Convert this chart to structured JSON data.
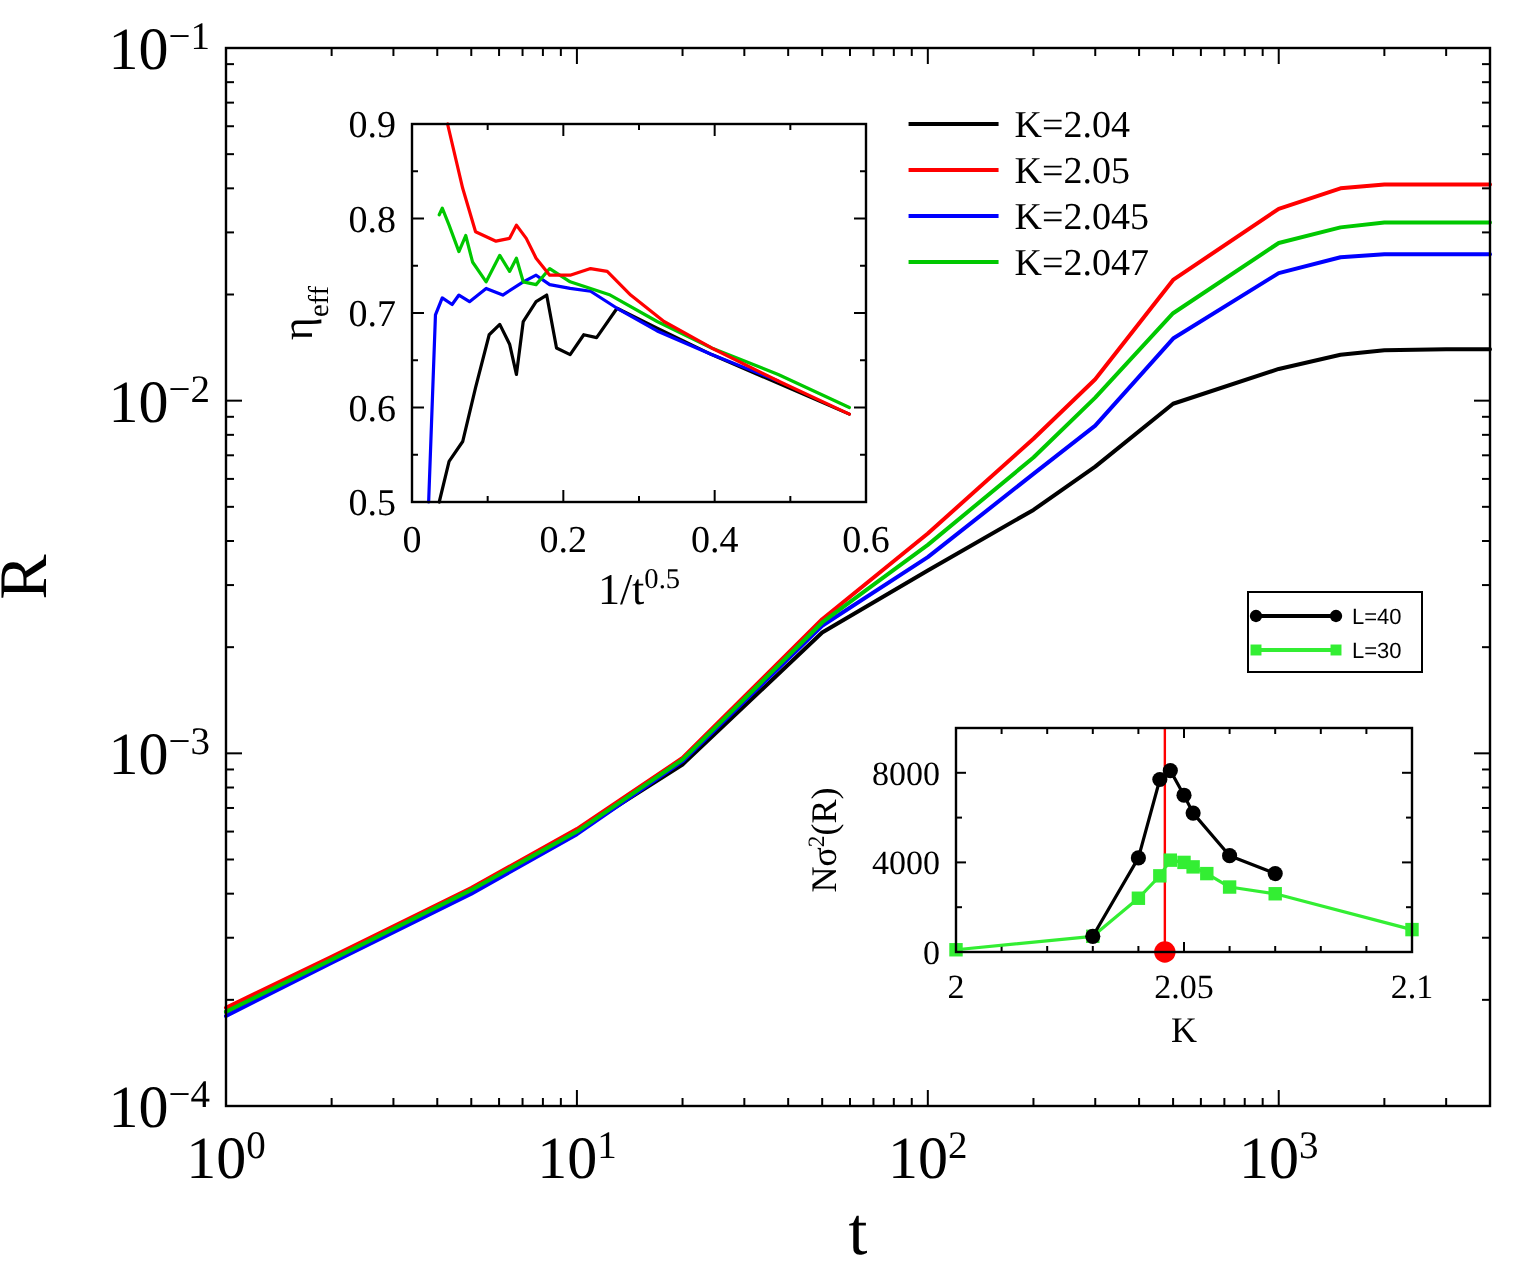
{
  "chart_data": [
    {
      "type": "line",
      "xlabel": "t",
      "ylabel": "R",
      "log": "xy",
      "legend": "top",
      "line_style": "solid",
      "marker": "none",
      "x": [
        1,
        2,
        5,
        10,
        20,
        50,
        100,
        200,
        300,
        500,
        1000,
        1500,
        2000,
        3000,
        4000
      ],
      "xlim": [
        1,
        4000
      ],
      "ylim": [
        0.0001,
        0.1
      ],
      "xticks": [
        {
          "value": 1,
          "label": "10$^{0}$"
        },
        {
          "value": 2,
          "label": null
        },
        {
          "value": 3,
          "label": null
        },
        {
          "value": 4,
          "label": null
        },
        {
          "value": 5,
          "label": null
        },
        {
          "value": 6,
          "label": null
        },
        {
          "value": 7,
          "label": null
        },
        {
          "value": 8,
          "label": null
        },
        {
          "value": 9,
          "label": null
        },
        {
          "value": 10,
          "label": "10$^{1}$"
        },
        {
          "value": 20,
          "label": null
        },
        {
          "value": 30,
          "label": null
        },
        {
          "value": 40,
          "label": null
        },
        {
          "value": 50,
          "label": null
        },
        {
          "value": 60,
          "label": null
        },
        {
          "value": 70,
          "label": null
        },
        {
          "value": 80,
          "label": null
        },
        {
          "value": 90,
          "label": null
        },
        {
          "value": 100,
          "label": "10$^{2}$"
        },
        {
          "value": 200,
          "label": null
        },
        {
          "value": 300,
          "label": null
        },
        {
          "value": 400,
          "label": null
        },
        {
          "value": 500,
          "label": null
        },
        {
          "value": 600,
          "label": null
        },
        {
          "value": 700,
          "label": null
        },
        {
          "value": 800,
          "label": null
        },
        {
          "value": 900,
          "label": null
        },
        {
          "value": 1000,
          "label": "10$^{3}$"
        },
        {
          "value": 2000,
          "label": null
        },
        {
          "value": 3000,
          "label": null
        },
        {
          "value": 4000,
          "label": null
        }
      ],
      "yticks": [
        {
          "value": 0.0001,
          "label": "10$^{−4}$"
        },
        {
          "value": 0.0002,
          "label": null
        },
        {
          "value": 0.0003,
          "label": null
        },
        {
          "value": 0.0004,
          "label": null
        },
        {
          "value": 0.0005,
          "label": null
        },
        {
          "value": 0.0006,
          "label": null
        },
        {
          "value": 0.0007,
          "label": null
        },
        {
          "value": 0.0008,
          "label": null
        },
        {
          "value": 0.0009,
          "label": null
        },
        {
          "value": 0.001,
          "label": "10$^{−3}$"
        },
        {
          "value": 0.002,
          "label": null
        },
        {
          "value": 0.003,
          "label": null
        },
        {
          "value": 0.004,
          "label": null
        },
        {
          "value": 0.005,
          "label": null
        },
        {
          "value": 0.006,
          "label": null
        },
        {
          "value": 0.007,
          "label": null
        },
        {
          "value": 0.008,
          "label": null
        },
        {
          "value": 0.009,
          "label": null
        },
        {
          "value": 0.01,
          "label": "10$^{−2}$"
        },
        {
          "value": 0.02,
          "label": null
        },
        {
          "value": 0.03,
          "label": null
        },
        {
          "value": 0.04,
          "label": null
        },
        {
          "value": 0.05,
          "label": null
        },
        {
          "value": 0.06,
          "label": null
        },
        {
          "value": 0.07,
          "label": null
        },
        {
          "value": 0.08,
          "label": null
        },
        {
          "value": 0.09,
          "label": null
        },
        {
          "value": 0.1,
          "label": "10$^{−1}$"
        }
      ],
      "series": [
        {
          "name": "K=2.04",
          "color": "#000000",
          "values": [
            0.000185,
            0.00026,
            0.00041,
            0.0006,
            0.00093,
            0.0022,
            0.0033,
            0.0049,
            0.0065,
            0.0098,
            0.0123,
            0.0135,
            0.0139,
            0.014,
            0.014
          ]
        },
        {
          "name": "K=2.05",
          "color": "#ff0000",
          "values": [
            0.00019,
            0.000265,
            0.000415,
            0.00061,
            0.00097,
            0.0024,
            0.0042,
            0.0078,
            0.0115,
            0.022,
            0.035,
            0.04,
            0.041,
            0.041,
            0.041
          ]
        },
        {
          "name": "K=2.045",
          "color": "#0000ff",
          "values": [
            0.00018,
            0.000255,
            0.0004,
            0.00059,
            0.00095,
            0.0023,
            0.0036,
            0.0062,
            0.0085,
            0.015,
            0.023,
            0.0255,
            0.026,
            0.026,
            0.026
          ]
        },
        {
          "name": "K=2.047",
          "color": "#00c800",
          "values": [
            0.000185,
            0.00026,
            0.00041,
            0.0006,
            0.00096,
            0.00235,
            0.0039,
            0.0069,
            0.0102,
            0.0177,
            0.028,
            0.031,
            0.032,
            0.032,
            0.032
          ]
        }
      ]
    },
    {
      "type": "line",
      "xlabel": "1/t$^{0.5}$",
      "ylabel": "η$_{eff}$",
      "legend": false,
      "line_style": "solid",
      "marker": "none",
      "xlim": [
        0,
        0.6
      ],
      "ylim": [
        0.5,
        0.9
      ],
      "xticks": [
        0,
        {
          "value": 0.1,
          "label": null
        },
        0.2,
        {
          "value": 0.3,
          "label": null
        },
        0.4,
        {
          "value": 0.5,
          "label": null
        },
        0.6
      ],
      "yticks": [
        0.5,
        {
          "value": 0.55,
          "label": null
        },
        0.6,
        {
          "value": 0.65,
          "label": null
        },
        0.7,
        {
          "value": 0.75,
          "label": null
        },
        0.8,
        {
          "value": 0.85,
          "label": null
        },
        0.9
      ],
      "series": [
        {
          "color": "#000000",
          "x": [
            0.036,
            0.049,
            0.067,
            0.084,
            0.102,
            0.116,
            0.129,
            0.138,
            0.147,
            0.164,
            0.178,
            0.191,
            0.209,
            0.227,
            0.244,
            0.271,
            0.324,
            0.396,
            0.484,
            0.578
          ],
          "values": [
            0.5,
            0.543,
            0.564,
            0.621,
            0.677,
            0.688,
            0.667,
            0.635,
            0.691,
            0.712,
            0.719,
            0.663,
            0.656,
            0.677,
            0.674,
            0.705,
            0.684,
            0.656,
            null,
            0.593
          ]
        },
        {
          "color": "#0000ff",
          "x": [
            0.022,
            0.031,
            0.04,
            0.053,
            0.062,
            0.076,
            0.098,
            0.12,
            0.147,
            0.164,
            0.182,
            0.209,
            0.236,
            0.271,
            0.324,
            0.396,
            0.484
          ],
          "values": [
            0.5,
            0.698,
            0.716,
            0.709,
            0.719,
            0.712,
            0.726,
            0.719,
            0.733,
            0.74,
            0.73,
            0.726,
            0.723,
            0.705,
            0.681,
            0.656,
            0.628
          ]
        },
        {
          "color": "#00c800",
          "x": [
            0.036,
            0.04,
            0.049,
            0.062,
            0.071,
            0.08,
            0.098,
            0.116,
            0.129,
            0.138,
            0.147,
            0.164,
            0.182,
            0.209,
            0.262,
            0.324,
            0.396,
            0.484,
            0.578
          ],
          "values": [
            0.804,
            0.811,
            0.793,
            0.765,
            0.782,
            0.754,
            0.733,
            0.761,
            0.744,
            0.758,
            0.733,
            0.73,
            0.747,
            0.733,
            0.719,
            0.691,
            0.663,
            0.635,
            0.6
          ]
        },
        {
          "color": "#ff0000",
          "x": [
            0.047,
            0.067,
            0.084,
            0.111,
            0.129,
            0.138,
            0.151,
            0.164,
            0.182,
            0.209,
            0.236,
            0.258,
            0.289,
            0.333,
            0.396,
            0.484,
            0.578
          ],
          "values": [
            0.9,
            0.832,
            0.786,
            0.776,
            0.779,
            0.793,
            0.779,
            0.758,
            0.74,
            0.74,
            0.747,
            0.744,
            0.719,
            0.691,
            0.663,
            0.628,
            0.593
          ]
        }
      ]
    },
    {
      "type": "line",
      "xlabel": "K",
      "ylabel": "Nσ$^{2}$(R)",
      "legend": "top right",
      "line_style": "solid",
      "xlim": [
        2,
        2.1
      ],
      "ylim": [
        0,
        10000
      ],
      "xticks": [
        2,
        {
          "value": 2.01,
          "label": null
        },
        {
          "value": 2.02,
          "label": null
        },
        {
          "value": 2.03,
          "label": null
        },
        {
          "value": 2.04,
          "label": null
        },
        2.05,
        {
          "value": 2.06,
          "label": null
        },
        {
          "value": 2.07,
          "label": null
        },
        {
          "value": 2.08,
          "label": null
        },
        {
          "value": 2.09,
          "label": null
        },
        2.1
      ],
      "yticks": [
        0,
        {
          "value": 2000,
          "label": null
        },
        4000,
        {
          "value": 6000,
          "label": null
        },
        8000,
        {
          "value": 10000,
          "label": null
        }
      ],
      "ref_lines": [
        {
          "axis": "x",
          "value": 2.0458,
          "color": "#ff0000"
        }
      ],
      "series": [
        {
          "name": "L=30",
          "color": "#33ee33",
          "marker": "square",
          "x": [
            2,
            2.03,
            2.04,
            2.0447,
            2.047,
            2.05,
            2.052,
            2.055,
            2.06,
            2.07,
            2.1
          ],
          "values": [
            100,
            700,
            2400,
            3400,
            4100,
            4000,
            3800,
            3500,
            2900,
            2600,
            1000
          ]
        },
        {
          "name": "L=40",
          "color": "#000000",
          "marker": "circle",
          "x": [
            2.03,
            2.04,
            2.0447,
            2.047,
            2.05,
            2.052,
            2.06,
            2.07
          ],
          "values": [
            700,
            4200,
            7700,
            8100,
            7000,
            6200,
            4300,
            3500
          ]
        },
        {
          "type": "scatter",
          "color": "#ff0000",
          "marker": "circle",
          "x": [
            2.0458
          ],
          "values": [
            0
          ]
        }
      ]
    }
  ]
}
